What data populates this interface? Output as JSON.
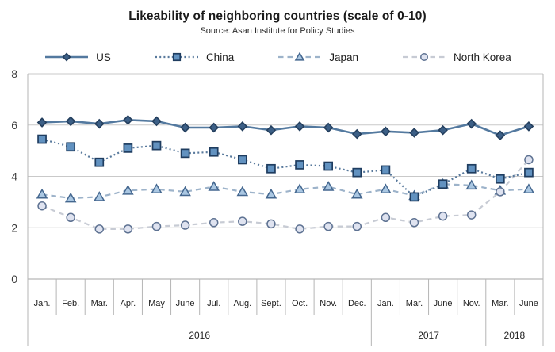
{
  "header": {
    "title": "Likeability of neighboring countries (scale of 0-10)",
    "subtitle": "Source: Asan Institute for Policy Studies"
  },
  "chart_data": {
    "type": "line",
    "title": "Likeability of neighboring countries (scale of 0-10)",
    "subtitle": "Source: Asan Institute for Policy Studies",
    "legend_position": "top",
    "grid": true,
    "ylim": [
      0,
      8
    ],
    "yticks": [
      0,
      2,
      4,
      6,
      8
    ],
    "x_labels": [
      "Jan.",
      "Feb.",
      "Mar.",
      "Apr.",
      "May",
      "June",
      "Jul.",
      "Aug.",
      "Sept.",
      "Oct.",
      "Nov.",
      "Dec.",
      "Jan.",
      "Mar.",
      "June",
      "Nov.",
      "Mar.",
      "June"
    ],
    "year_groups": [
      {
        "label": "2016",
        "start": 0,
        "count": 12
      },
      {
        "label": "2017",
        "start": 12,
        "count": 4
      },
      {
        "label": "2018",
        "start": 16,
        "count": 2
      }
    ],
    "series": [
      {
        "name": "US",
        "marker": "diamond",
        "line_style": "solid",
        "line_color": "#53799f",
        "marker_fill": "#3c5f86",
        "marker_stroke": "#243f5e",
        "values": [
          6.1,
          6.15,
          6.05,
          6.2,
          6.15,
          5.9,
          5.9,
          5.95,
          5.8,
          5.95,
          5.9,
          5.65,
          5.75,
          5.7,
          5.8,
          6.05,
          5.6,
          5.95
        ]
      },
      {
        "name": "China",
        "marker": "square",
        "line_style": "dotted",
        "line_color": "#58799c",
        "marker_fill": "#6292c0",
        "marker_stroke": "#1f3d60",
        "values": [
          5.45,
          5.15,
          4.55,
          5.1,
          5.2,
          4.9,
          4.95,
          4.65,
          4.3,
          4.45,
          4.4,
          4.15,
          4.25,
          3.2,
          3.7,
          4.3,
          3.9,
          4.15
        ]
      },
      {
        "name": "Japan",
        "marker": "triangle",
        "line_style": "dashed",
        "line_color": "#9db3ca",
        "marker_fill": "#aac7e2",
        "marker_stroke": "#44678f",
        "values": [
          3.3,
          3.15,
          3.2,
          3.45,
          3.5,
          3.4,
          3.6,
          3.4,
          3.3,
          3.5,
          3.6,
          3.3,
          3.5,
          3.25,
          3.7,
          3.65,
          3.45,
          3.5
        ]
      },
      {
        "name": "North Korea",
        "marker": "circle",
        "line_style": "dashed",
        "line_color": "#c7cbd4",
        "marker_fill": "#dfe3f0",
        "marker_stroke": "#5e7292",
        "values": [
          2.85,
          2.4,
          1.95,
          1.95,
          2.05,
          2.1,
          2.2,
          2.25,
          2.15,
          1.95,
          2.05,
          2.05,
          2.4,
          2.2,
          2.45,
          2.5,
          3.4,
          4.65
        ]
      }
    ],
    "axis_colors": {
      "grid": "#c9c9c9",
      "baseline": "#a6a6a6",
      "separator": "#b5b5b5",
      "tick_text": "#3c3c3c",
      "label_text": "#222222"
    }
  }
}
